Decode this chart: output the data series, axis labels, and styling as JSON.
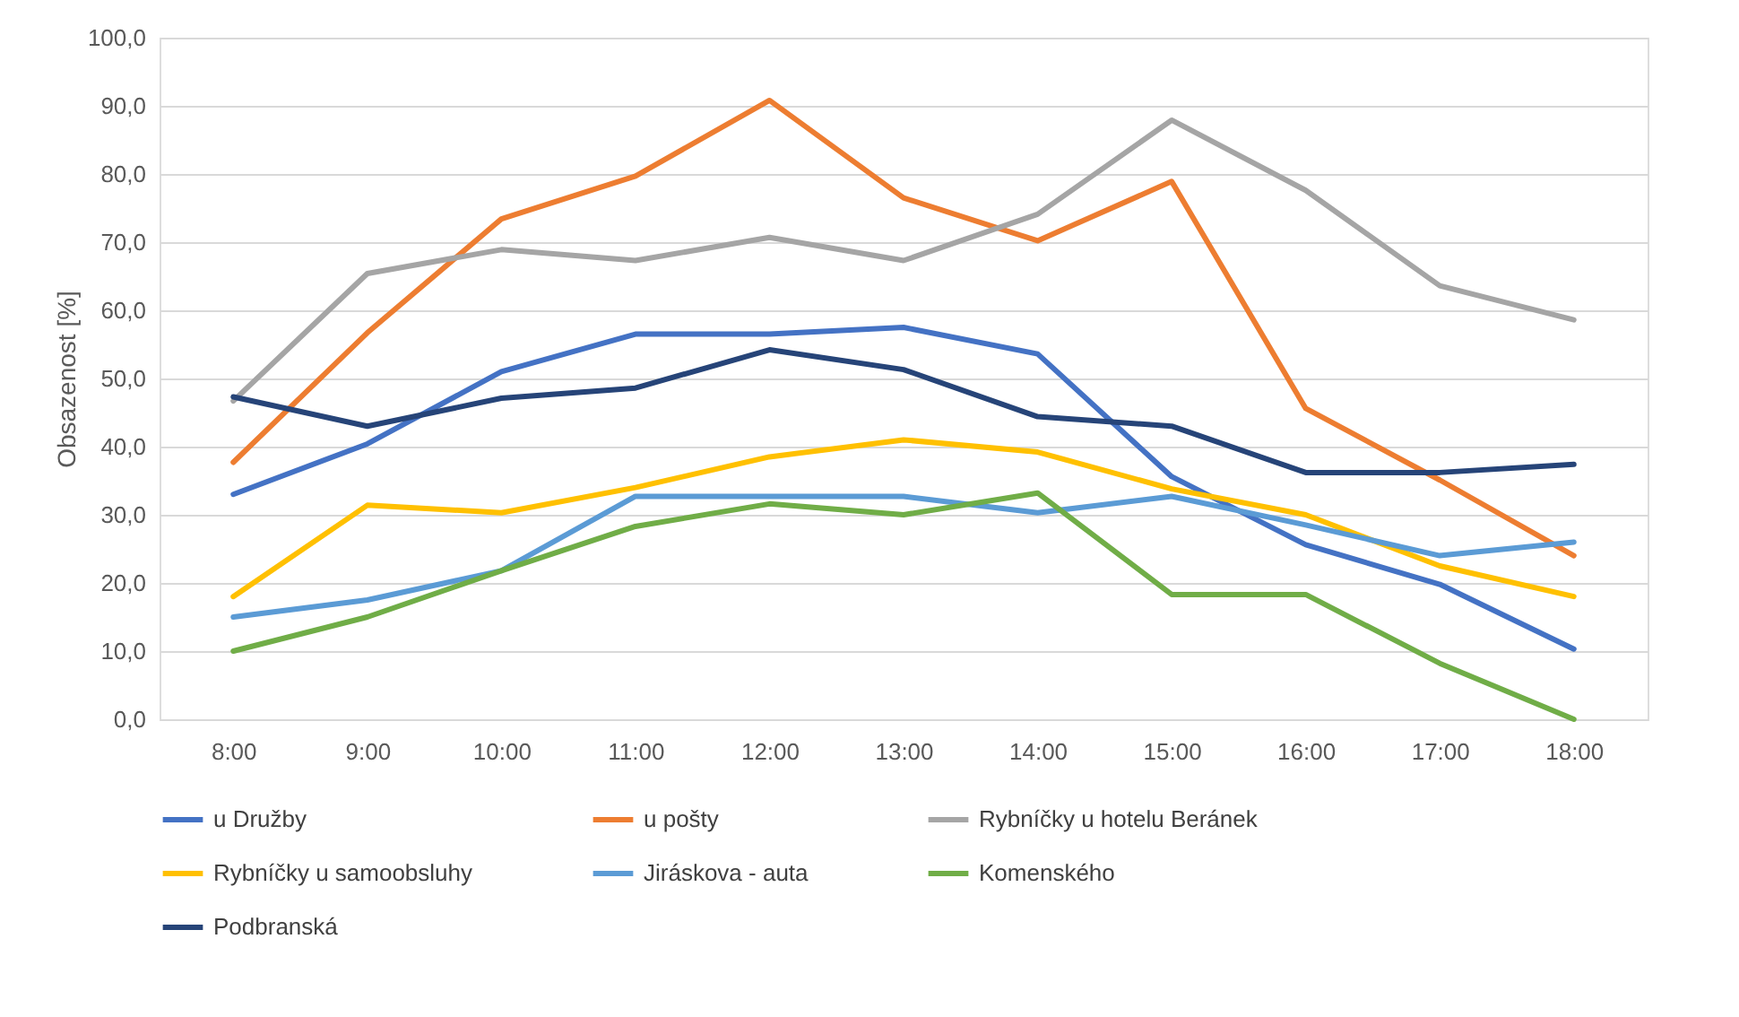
{
  "chart_data": {
    "type": "line",
    "ylabel": "Obsazenost [%]",
    "categories": [
      "8:00",
      "9:00",
      "10:00",
      "11:00",
      "12:00",
      "13:00",
      "14:00",
      "15:00",
      "16:00",
      "17:00",
      "18:00"
    ],
    "series": [
      {
        "name": "u Družby",
        "color": "#4472c4",
        "values": [
          33,
          40.4,
          51,
          56.5,
          56.5,
          57.5,
          53.6,
          35.6,
          25.6,
          19.8,
          10.3
        ]
      },
      {
        "name": "u pošty",
        "color": "#ed7d31",
        "values": [
          37.7,
          56.7,
          73.4,
          79.7,
          90.8,
          76.5,
          70.2,
          78.9,
          45.6,
          35.1,
          24
        ]
      },
      {
        "name": "Rybníčky u hotelu Beránek",
        "color": "#a5a5a5",
        "values": [
          46.7,
          65.4,
          68.9,
          67.3,
          70.7,
          67.3,
          74.1,
          87.9,
          77.6,
          63.6,
          58.6
        ]
      },
      {
        "name": "Rybníčky u samoobsluhy",
        "color": "#ffc000",
        "values": [
          18,
          31.4,
          30.3,
          34,
          38.5,
          41,
          39.2,
          33.8,
          30,
          22.5,
          18
        ]
      },
      {
        "name": "Jiráskova - auta",
        "color": "#5b9bd5",
        "values": [
          15,
          17.5,
          21.8,
          32.7,
          32.7,
          32.7,
          30.3,
          32.7,
          28.5,
          24,
          26
        ]
      },
      {
        "name": "Komenského",
        "color": "#70ad47",
        "values": [
          10,
          15,
          21.8,
          28.3,
          31.6,
          30,
          33.2,
          18.3,
          18.3,
          8.2,
          0
        ]
      },
      {
        "name": "Podbranská",
        "color": "#264478",
        "values": [
          47.3,
          43,
          47.1,
          48.6,
          54.2,
          51.3,
          44.4,
          43,
          36.2,
          36.2,
          37.4
        ]
      }
    ],
    "ylim": [
      0,
      100
    ],
    "yticks": [
      {
        "value": 0,
        "label": "0,0"
      },
      {
        "value": 10,
        "label": "10,0"
      },
      {
        "value": 20,
        "label": "20,0"
      },
      {
        "value": 30,
        "label": "30,0"
      },
      {
        "value": 40,
        "label": "40,0"
      },
      {
        "value": 50,
        "label": "50,0"
      },
      {
        "value": 60,
        "label": "60,0"
      },
      {
        "value": 70,
        "label": "70,0"
      },
      {
        "value": 80,
        "label": "80,0"
      },
      {
        "value": 90,
        "label": "90,0"
      },
      {
        "value": 100,
        "label": "100,0"
      }
    ],
    "grid": "y",
    "legend": "bottom",
    "marker": "none",
    "line_style": "solid"
  }
}
